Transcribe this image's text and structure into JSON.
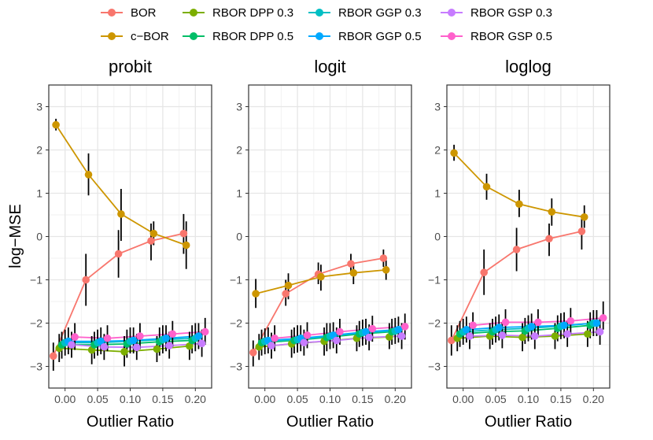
{
  "colors": {
    "BOR": "#F8766D",
    "c-BOR": "#CD9600",
    "RBOR DPP 0.3": "#7CAE00",
    "RBOR DPP 0.5": "#00BE67",
    "RBOR GGP 0.3": "#00BFC4",
    "RBOR GGP 0.5": "#00A9FF",
    "RBOR GSP 0.3": "#C77CFF",
    "RBOR GSP 0.5": "#FF61CC"
  },
  "legend": [
    {
      "label": "BOR",
      "key": "BOR"
    },
    {
      "label": "RBOR DPP 0.3",
      "key": "RBOR DPP 0.3"
    },
    {
      "label": "RBOR GGP 0.3",
      "key": "RBOR GGP 0.3"
    },
    {
      "label": "RBOR GSP 0.3",
      "key": "RBOR GSP 0.3"
    },
    {
      "label": "c−BOR",
      "key": "c-BOR"
    },
    {
      "label": "RBOR DPP 0.5",
      "key": "RBOR DPP 0.5"
    },
    {
      "label": "RBOR GGP 0.5",
      "key": "RBOR GGP 0.5"
    },
    {
      "label": "RBOR GSP 0.5",
      "key": "RBOR GSP 0.5"
    }
  ],
  "chart_data": [
    {
      "type": "line",
      "title": "probit",
      "xlabel": "Outlier Ratio",
      "ylabel": "log−MSE",
      "xlim": [
        -0.025,
        0.225
      ],
      "ylim": [
        -3.5,
        3.5
      ],
      "xticks": [
        "0.00",
        "0.05",
        "0.10",
        "0.15",
        "0.20"
      ],
      "yticks": [
        "−3",
        "−2",
        "−1",
        "0",
        "1",
        "2",
        "3"
      ],
      "grid": true,
      "x": [
        0,
        0.05,
        0.1,
        0.15,
        0.2
      ],
      "series": [
        {
          "name": "BOR",
          "values": [
            -2.76,
            -1.0,
            -0.4,
            -0.1,
            0.07
          ],
          "lo": [
            -3.1,
            -1.6,
            -0.95,
            -0.55,
            -0.4
          ],
          "hi": [
            -2.45,
            -0.4,
            0.15,
            0.3,
            0.52
          ]
        },
        {
          "name": "c-BOR",
          "values": [
            2.58,
            1.43,
            0.52,
            0.07,
            -0.2
          ],
          "lo": [
            2.45,
            0.95,
            -0.1,
            -0.2,
            -0.75
          ],
          "hi": [
            2.72,
            1.92,
            1.1,
            0.35,
            0.35
          ]
        },
        {
          "name": "RBOR DPP 0.3",
          "values": [
            -2.58,
            -2.62,
            -2.66,
            -2.6,
            -2.53
          ],
          "lo": [
            -2.9,
            -2.95,
            -3.0,
            -2.9,
            -2.85
          ],
          "hi": [
            -2.25,
            -2.3,
            -2.3,
            -2.3,
            -2.2
          ]
        },
        {
          "name": "RBOR DPP 0.5",
          "values": [
            -2.5,
            -2.5,
            -2.48,
            -2.43,
            -2.4
          ],
          "lo": [
            -2.82,
            -2.82,
            -2.8,
            -2.75,
            -2.7
          ],
          "hi": [
            -2.2,
            -2.2,
            -2.15,
            -2.1,
            -2.05
          ]
        },
        {
          "name": "RBOR GGP 0.3",
          "values": [
            -2.45,
            -2.45,
            -2.42,
            -2.38,
            -2.35
          ],
          "lo": [
            -2.75,
            -2.75,
            -2.7,
            -2.7,
            -2.65
          ],
          "hi": [
            -2.15,
            -2.15,
            -2.1,
            -2.05,
            -2.0
          ]
        },
        {
          "name": "RBOR GGP 0.5",
          "values": [
            -2.42,
            -2.42,
            -2.4,
            -2.35,
            -2.3
          ],
          "lo": [
            -2.72,
            -2.72,
            -2.7,
            -2.65,
            -2.6
          ],
          "hi": [
            -2.1,
            -2.1,
            -2.1,
            -2.05,
            -2.0
          ]
        },
        {
          "name": "RBOR GSP 0.3",
          "values": [
            -2.5,
            -2.55,
            -2.56,
            -2.52,
            -2.47
          ],
          "lo": [
            -2.8,
            -2.85,
            -2.85,
            -2.82,
            -2.78
          ],
          "hi": [
            -2.2,
            -2.25,
            -2.25,
            -2.2,
            -2.15
          ]
        },
        {
          "name": "RBOR GSP 0.5",
          "values": [
            -2.32,
            -2.35,
            -2.3,
            -2.25,
            -2.2
          ],
          "lo": [
            -2.62,
            -2.65,
            -2.6,
            -2.55,
            -2.5
          ],
          "hi": [
            -2.0,
            -2.05,
            -2.0,
            -1.95,
            -1.88
          ]
        }
      ]
    },
    {
      "type": "line",
      "title": "logit",
      "xlabel": "Outlier Ratio",
      "ylabel": "",
      "xlim": [
        -0.025,
        0.225
      ],
      "ylim": [
        -3.5,
        3.5
      ],
      "xticks": [
        "0.00",
        "0.05",
        "0.10",
        "0.15",
        "0.20"
      ],
      "yticks": [
        "−3",
        "−2",
        "−1",
        "0",
        "1",
        "2",
        "3"
      ],
      "grid": true,
      "x": [
        0,
        0.05,
        0.1,
        0.15,
        0.2
      ],
      "series": [
        {
          "name": "BOR",
          "values": [
            -2.68,
            -1.32,
            -0.87,
            -0.63,
            -0.5
          ],
          "lo": [
            -3.0,
            -1.6,
            -1.1,
            -0.85,
            -0.7
          ],
          "hi": [
            -2.4,
            -1.0,
            -0.6,
            -0.4,
            -0.3
          ]
        },
        {
          "name": "c-BOR",
          "values": [
            -1.32,
            -1.13,
            -0.93,
            -0.84,
            -0.77
          ],
          "lo": [
            -1.65,
            -1.45,
            -1.25,
            -1.1,
            -1.0
          ],
          "hi": [
            -0.98,
            -0.85,
            -0.65,
            -0.6,
            -0.55
          ]
        },
        {
          "name": "RBOR DPP 0.3",
          "values": [
            -2.55,
            -2.48,
            -2.42,
            -2.35,
            -2.32
          ],
          "lo": [
            -2.85,
            -2.8,
            -2.75,
            -2.65,
            -2.6
          ],
          "hi": [
            -2.25,
            -2.15,
            -2.1,
            -2.05,
            -2.0
          ]
        },
        {
          "name": "RBOR DPP 0.5",
          "values": [
            -2.45,
            -2.4,
            -2.33,
            -2.25,
            -2.2
          ],
          "lo": [
            -2.75,
            -2.7,
            -2.65,
            -2.55,
            -2.5
          ],
          "hi": [
            -2.15,
            -2.1,
            -2.0,
            -1.95,
            -1.9
          ]
        },
        {
          "name": "RBOR GGP 0.3",
          "values": [
            -2.42,
            -2.38,
            -2.3,
            -2.22,
            -2.18
          ],
          "lo": [
            -2.72,
            -2.68,
            -2.6,
            -2.52,
            -2.48
          ],
          "hi": [
            -2.12,
            -2.05,
            -2.0,
            -1.92,
            -1.88
          ]
        },
        {
          "name": "RBOR GGP 0.5",
          "values": [
            -2.4,
            -2.35,
            -2.28,
            -2.2,
            -2.15
          ],
          "lo": [
            -2.7,
            -2.65,
            -2.58,
            -2.5,
            -2.45
          ],
          "hi": [
            -2.1,
            -2.05,
            -1.98,
            -1.9,
            -1.85
          ]
        },
        {
          "name": "RBOR GSP 0.3",
          "values": [
            -2.52,
            -2.45,
            -2.4,
            -2.33,
            -2.3
          ],
          "lo": [
            -2.82,
            -2.75,
            -2.7,
            -2.63,
            -2.6
          ],
          "hi": [
            -2.22,
            -2.15,
            -2.1,
            -2.03,
            -2.0
          ]
        },
        {
          "name": "RBOR GSP 0.5",
          "values": [
            -2.35,
            -2.28,
            -2.2,
            -2.13,
            -2.08
          ],
          "lo": [
            -2.65,
            -2.58,
            -2.5,
            -2.43,
            -2.38
          ],
          "hi": [
            -2.05,
            -1.98,
            -1.9,
            -1.83,
            -1.78
          ]
        }
      ]
    },
    {
      "type": "line",
      "title": "loglog",
      "xlabel": "Outlier Ratio",
      "ylabel": "",
      "xlim": [
        -0.025,
        0.225
      ],
      "ylim": [
        -3.5,
        3.5
      ],
      "xticks": [
        "0.00",
        "0.05",
        "0.10",
        "0.15",
        "0.20"
      ],
      "yticks": [
        "−3",
        "−2",
        "−1",
        "0",
        "1",
        "2",
        "3"
      ],
      "grid": true,
      "x": [
        0,
        0.05,
        0.1,
        0.15,
        0.2
      ],
      "series": [
        {
          "name": "BOR",
          "values": [
            -2.4,
            -0.83,
            -0.3,
            -0.05,
            0.12
          ],
          "lo": [
            -2.75,
            -1.35,
            -0.8,
            -0.45,
            -0.3
          ],
          "hi": [
            -2.05,
            -0.3,
            0.2,
            0.3,
            0.5
          ]
        },
        {
          "name": "c-BOR",
          "values": [
            1.93,
            1.15,
            0.75,
            0.57,
            0.45
          ],
          "lo": [
            1.75,
            0.85,
            0.45,
            0.25,
            0.2
          ],
          "hi": [
            2.12,
            1.45,
            1.08,
            0.88,
            0.72
          ]
        },
        {
          "name": "RBOR DPP 0.3",
          "values": [
            -2.35,
            -2.3,
            -2.33,
            -2.3,
            -2.25
          ],
          "lo": [
            -2.65,
            -2.6,
            -2.65,
            -2.6,
            -2.55
          ],
          "hi": [
            -2.05,
            -2.0,
            -2.0,
            -2.0,
            -1.95
          ]
        },
        {
          "name": "RBOR DPP 0.5",
          "values": [
            -2.25,
            -2.2,
            -2.18,
            -2.12,
            -2.05
          ],
          "lo": [
            -2.55,
            -2.5,
            -2.48,
            -2.42,
            -2.35
          ],
          "hi": [
            -1.95,
            -1.9,
            -1.88,
            -1.82,
            -1.75
          ]
        },
        {
          "name": "RBOR GGP 0.3",
          "values": [
            -2.2,
            -2.15,
            -2.12,
            -2.07,
            -2.0
          ],
          "lo": [
            -2.5,
            -2.45,
            -2.42,
            -2.37,
            -2.3
          ],
          "hi": [
            -1.9,
            -1.85,
            -1.82,
            -1.77,
            -1.7
          ]
        },
        {
          "name": "RBOR GGP 0.5",
          "values": [
            -2.15,
            -2.1,
            -2.08,
            -2.05,
            -2.0
          ],
          "lo": [
            -2.45,
            -2.4,
            -2.38,
            -2.35,
            -2.3
          ],
          "hi": [
            -1.85,
            -1.8,
            -1.78,
            -1.75,
            -1.7
          ]
        },
        {
          "name": "RBOR GSP 0.3",
          "values": [
            -2.3,
            -2.28,
            -2.3,
            -2.25,
            -2.2
          ],
          "lo": [
            -2.6,
            -2.58,
            -2.6,
            -2.55,
            -2.5
          ],
          "hi": [
            -2.0,
            -1.98,
            -2.0,
            -1.95,
            -1.9
          ]
        },
        {
          "name": "RBOR GSP 0.5",
          "values": [
            -2.05,
            -1.98,
            -1.98,
            -1.95,
            -1.88
          ],
          "lo": [
            -2.35,
            -2.28,
            -2.28,
            -2.25,
            -2.15
          ],
          "hi": [
            -1.75,
            -1.68,
            -1.68,
            -1.65,
            -1.5
          ]
        }
      ]
    }
  ]
}
